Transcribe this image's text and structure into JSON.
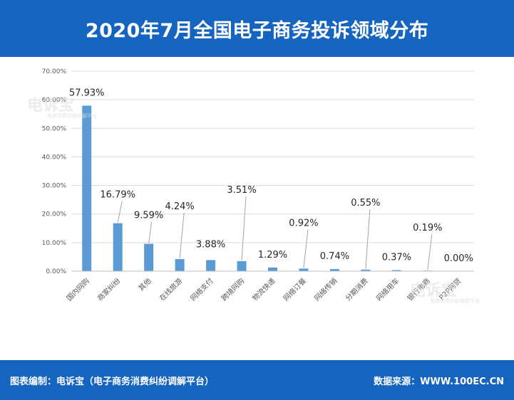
{
  "header": {
    "title": "2020年7月全国电子商务投诉领域分布"
  },
  "watermark": {
    "brand": "电诉宝",
    "sub": "电商消费纠纷调解平台"
  },
  "footer": {
    "left": "图表编制：电诉宝（电子商务消费纠纷调解平台）",
    "right": "数据来源：WWW.100EC.CN"
  },
  "colors": {
    "bar": "#5b9bd5",
    "header": "#1565c0",
    "grid": "#d9d9d9",
    "axis_text": "#595959"
  },
  "chart_data": {
    "type": "bar",
    "title": "2020年7月全国电子商务投诉领域分布",
    "xlabel": "",
    "ylabel": "",
    "ylim": [
      0,
      70
    ],
    "yticks": [
      "0.00%",
      "10.00%",
      "20.00%",
      "30.00%",
      "40.00%",
      "50.00%",
      "60.00%",
      "70.00%"
    ],
    "grid": true,
    "categories": [
      "国内网购",
      "商家纠纷",
      "其他",
      "在线旅游",
      "网络支付",
      "跨境网购",
      "物流快递",
      "网络订餐",
      "网络传销",
      "分期消费",
      "网络用车",
      "银行电商",
      "P2P网贷"
    ],
    "values": [
      57.93,
      16.79,
      9.59,
      4.24,
      3.88,
      3.51,
      1.29,
      0.92,
      0.74,
      0.55,
      0.37,
      0.19,
      0.0
    ],
    "value_labels": [
      "57.93%",
      "16.79%",
      "9.59%",
      "4.24%",
      "3.88%",
      "3.51%",
      "1.29%",
      "0.92%",
      "0.74%",
      "0.55%",
      "0.37%",
      "0.19%",
      "0.00%"
    ]
  }
}
